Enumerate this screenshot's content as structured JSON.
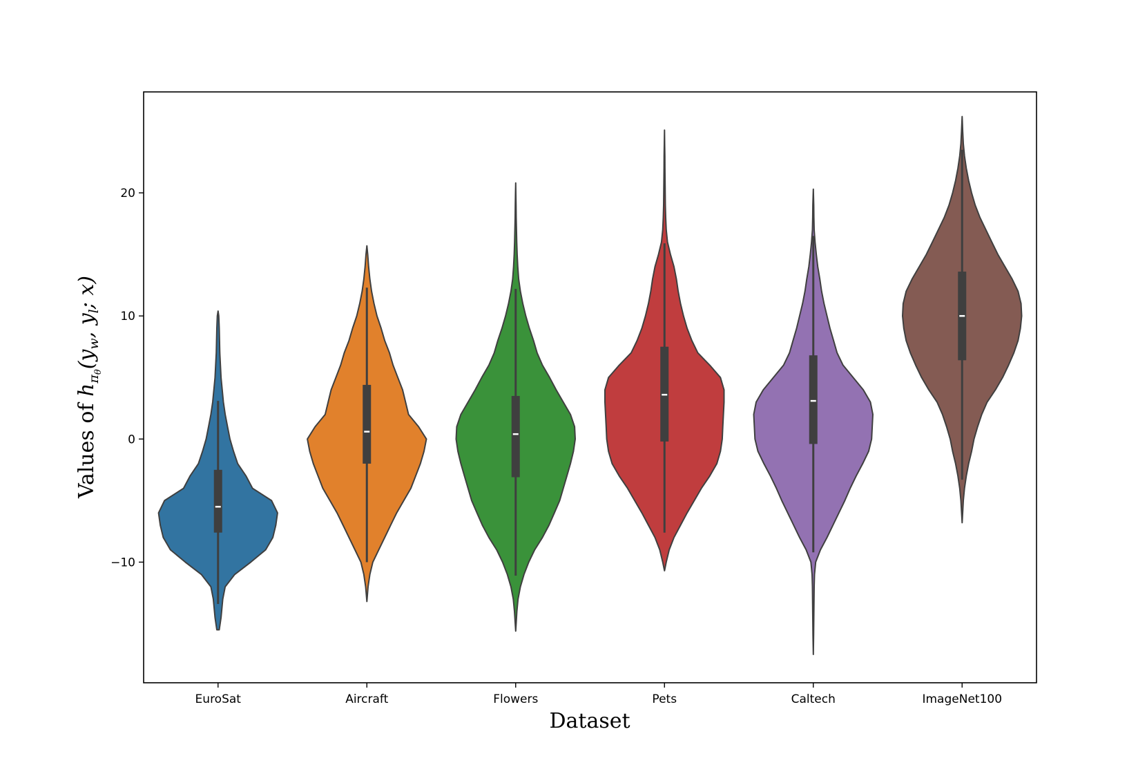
{
  "chart_data": {
    "type": "violin",
    "title": "",
    "xlabel": "Dataset",
    "ylabel": {
      "prefix": "Values of ",
      "func": "h",
      "func_sub": "π",
      "func_subsub": "θ",
      "args": "(y",
      "arg1_sub": "w",
      "mid": ", y",
      "arg2_sub": "l",
      "tail": "; x)"
    },
    "ylim": [
      -19.8,
      28.2
    ],
    "yticks": [
      -10,
      0,
      10,
      20
    ],
    "ytick_labels": [
      "−10",
      "0",
      "10",
      "20"
    ],
    "grid": false,
    "legend": "none",
    "series": [
      {
        "category": "EuroSat",
        "color": "#3274a1",
        "min": -15.5,
        "max": 10.4,
        "q1": -7.6,
        "median": -5.5,
        "q3": -2.5,
        "whisker_low": -13.4,
        "whisker_high": 3.1,
        "density": [
          [
            -15.5,
            0.02
          ],
          [
            -14.5,
            0.05
          ],
          [
            -13,
            0.08
          ],
          [
            -12,
            0.12
          ],
          [
            -11,
            0.28
          ],
          [
            -10,
            0.55
          ],
          [
            -9,
            0.8
          ],
          [
            -8,
            0.92
          ],
          [
            -7,
            0.97
          ],
          [
            -6,
            1.0
          ],
          [
            -5,
            0.9
          ],
          [
            -4,
            0.58
          ],
          [
            -3,
            0.47
          ],
          [
            -2,
            0.33
          ],
          [
            -1,
            0.26
          ],
          [
            0,
            0.2
          ],
          [
            1,
            0.16
          ],
          [
            2,
            0.12
          ],
          [
            3,
            0.09
          ],
          [
            4,
            0.07
          ],
          [
            5,
            0.05
          ],
          [
            6,
            0.04
          ],
          [
            7,
            0.03
          ],
          [
            8,
            0.025
          ],
          [
            9,
            0.02
          ],
          [
            10,
            0.012
          ],
          [
            10.4,
            0.0
          ]
        ]
      },
      {
        "category": "Aircraft",
        "color": "#e1812c",
        "min": -13.2,
        "max": 15.7,
        "q1": -2.0,
        "median": 0.6,
        "q3": 4.4,
        "whisker_low": -10.0,
        "whisker_high": 12.3,
        "density": [
          [
            -13.2,
            0.0
          ],
          [
            -12,
            0.02
          ],
          [
            -11,
            0.05
          ],
          [
            -10,
            0.1
          ],
          [
            -9,
            0.2
          ],
          [
            -8,
            0.3
          ],
          [
            -7,
            0.4
          ],
          [
            -6,
            0.5
          ],
          [
            -5,
            0.62
          ],
          [
            -4,
            0.74
          ],
          [
            -3,
            0.82
          ],
          [
            -2,
            0.9
          ],
          [
            -1,
            0.96
          ],
          [
            0,
            1.0
          ],
          [
            1,
            0.87
          ],
          [
            2,
            0.7
          ],
          [
            3,
            0.65
          ],
          [
            4,
            0.6
          ],
          [
            5,
            0.52
          ],
          [
            6,
            0.44
          ],
          [
            7,
            0.38
          ],
          [
            8,
            0.3
          ],
          [
            9,
            0.24
          ],
          [
            10,
            0.17
          ],
          [
            11,
            0.12
          ],
          [
            12,
            0.08
          ],
          [
            13,
            0.05
          ],
          [
            14,
            0.03
          ],
          [
            15,
            0.015
          ],
          [
            15.7,
            0.0
          ]
        ]
      },
      {
        "category": "Flowers",
        "color": "#3a923a",
        "min": -15.6,
        "max": 20.8,
        "q1": -3.1,
        "median": 0.4,
        "q3": 3.5,
        "whisker_low": -11.1,
        "whisker_high": 12.2,
        "density": [
          [
            -15.6,
            0.0
          ],
          [
            -14,
            0.02
          ],
          [
            -13,
            0.04
          ],
          [
            -12,
            0.08
          ],
          [
            -11,
            0.14
          ],
          [
            -10,
            0.22
          ],
          [
            -9,
            0.32
          ],
          [
            -8,
            0.45
          ],
          [
            -7,
            0.56
          ],
          [
            -6,
            0.65
          ],
          [
            -5,
            0.74
          ],
          [
            -4,
            0.8
          ],
          [
            -3,
            0.86
          ],
          [
            -2,
            0.92
          ],
          [
            -1,
            0.97
          ],
          [
            0,
            1.0
          ],
          [
            1,
            0.99
          ],
          [
            2,
            0.92
          ],
          [
            3,
            0.8
          ],
          [
            4,
            0.68
          ],
          [
            5,
            0.57
          ],
          [
            6,
            0.45
          ],
          [
            7,
            0.36
          ],
          [
            8,
            0.3
          ],
          [
            9,
            0.23
          ],
          [
            10,
            0.17
          ],
          [
            11,
            0.12
          ],
          [
            12,
            0.08
          ],
          [
            13,
            0.05
          ],
          [
            14,
            0.035
          ],
          [
            15,
            0.025
          ],
          [
            16,
            0.018
          ],
          [
            17,
            0.013
          ],
          [
            18,
            0.009
          ],
          [
            19,
            0.006
          ],
          [
            20,
            0.003
          ],
          [
            20.8,
            0.0
          ]
        ]
      },
      {
        "category": "Pets",
        "color": "#c03d3e",
        "min": -10.7,
        "max": 25.1,
        "q1": -0.2,
        "median": 3.6,
        "q3": 7.5,
        "whisker_low": -7.6,
        "whisker_high": 15.9,
        "density": [
          [
            -10.7,
            0.0
          ],
          [
            -10,
            0.03
          ],
          [
            -9,
            0.08
          ],
          [
            -8,
            0.16
          ],
          [
            -7,
            0.27
          ],
          [
            -6,
            0.38
          ],
          [
            -5,
            0.5
          ],
          [
            -4,
            0.62
          ],
          [
            -3,
            0.76
          ],
          [
            -2,
            0.88
          ],
          [
            -1,
            0.94
          ],
          [
            0,
            0.97
          ],
          [
            1,
            0.98
          ],
          [
            2,
            0.99
          ],
          [
            3,
            1.0
          ],
          [
            4,
            1.0
          ],
          [
            5,
            0.94
          ],
          [
            6,
            0.76
          ],
          [
            7,
            0.56
          ],
          [
            8,
            0.46
          ],
          [
            9,
            0.38
          ],
          [
            10,
            0.32
          ],
          [
            11,
            0.27
          ],
          [
            12,
            0.23
          ],
          [
            13,
            0.2
          ],
          [
            14,
            0.16
          ],
          [
            15,
            0.1
          ],
          [
            16,
            0.05
          ],
          [
            17,
            0.03
          ],
          [
            18,
            0.02
          ],
          [
            19,
            0.015
          ],
          [
            20,
            0.012
          ],
          [
            21,
            0.01
          ],
          [
            22,
            0.008
          ],
          [
            23,
            0.006
          ],
          [
            24,
            0.003
          ],
          [
            25.1,
            0.0
          ]
        ]
      },
      {
        "category": "Caltech",
        "color": "#9372b2",
        "min": -17.5,
        "max": 20.3,
        "q1": -0.4,
        "median": 3.1,
        "q3": 6.8,
        "whisker_low": -9.2,
        "whisker_high": 16.5,
        "density": [
          [
            -17.5,
            0.0
          ],
          [
            -16,
            0.005
          ],
          [
            -14,
            0.01
          ],
          [
            -12,
            0.015
          ],
          [
            -11,
            0.02
          ],
          [
            -10,
            0.04
          ],
          [
            -9,
            0.12
          ],
          [
            -8,
            0.23
          ],
          [
            -7,
            0.33
          ],
          [
            -6,
            0.43
          ],
          [
            -5,
            0.53
          ],
          [
            -4,
            0.62
          ],
          [
            -3,
            0.72
          ],
          [
            -2,
            0.83
          ],
          [
            -1,
            0.93
          ],
          [
            0,
            0.98
          ],
          [
            1,
            0.99
          ],
          [
            2,
            1.0
          ],
          [
            3,
            0.96
          ],
          [
            4,
            0.84
          ],
          [
            5,
            0.67
          ],
          [
            6,
            0.5
          ],
          [
            7,
            0.4
          ],
          [
            8,
            0.34
          ],
          [
            9,
            0.28
          ],
          [
            10,
            0.23
          ],
          [
            11,
            0.18
          ],
          [
            12,
            0.14
          ],
          [
            13,
            0.11
          ],
          [
            14,
            0.075
          ],
          [
            15,
            0.05
          ],
          [
            16,
            0.03
          ],
          [
            17,
            0.015
          ],
          [
            18,
            0.01
          ],
          [
            19,
            0.007
          ],
          [
            20.3,
            0.0
          ]
        ]
      },
      {
        "category": "ImageNet100",
        "color": "#845b53",
        "min": -6.8,
        "max": 26.2,
        "q1": 6.4,
        "median": 10.0,
        "q3": 13.6,
        "whisker_low": -3.3,
        "whisker_high": 23.5,
        "density": [
          [
            -6.8,
            0.0
          ],
          [
            -5,
            0.02
          ],
          [
            -4,
            0.04
          ],
          [
            -3,
            0.07
          ],
          [
            -2,
            0.11
          ],
          [
            -1,
            0.16
          ],
          [
            0,
            0.2
          ],
          [
            1,
            0.26
          ],
          [
            2,
            0.33
          ],
          [
            3,
            0.42
          ],
          [
            4,
            0.56
          ],
          [
            5,
            0.68
          ],
          [
            6,
            0.78
          ],
          [
            7,
            0.87
          ],
          [
            8,
            0.94
          ],
          [
            9,
            0.98
          ],
          [
            10,
            1.0
          ],
          [
            11,
            0.99
          ],
          [
            12,
            0.94
          ],
          [
            13,
            0.84
          ],
          [
            14,
            0.72
          ],
          [
            15,
            0.6
          ],
          [
            16,
            0.5
          ],
          [
            17,
            0.4
          ],
          [
            18,
            0.3
          ],
          [
            19,
            0.22
          ],
          [
            20,
            0.16
          ],
          [
            21,
            0.11
          ],
          [
            22,
            0.07
          ],
          [
            23,
            0.04
          ],
          [
            24,
            0.02
          ],
          [
            25,
            0.01
          ],
          [
            26.2,
            0.0
          ]
        ]
      }
    ]
  }
}
